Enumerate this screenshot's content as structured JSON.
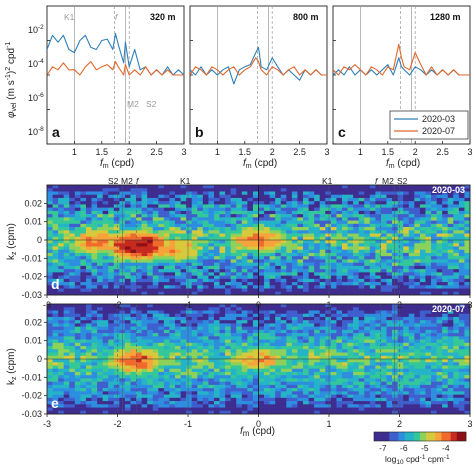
{
  "chart_data": [
    {
      "type": "line",
      "panel": "a",
      "depth_label": "320 m",
      "x_axis": {
        "ticks": [
          "1",
          "1.5",
          "2",
          "2.5",
          "3"
        ]
      },
      "y_axis": {
        "scale": "log",
        "ticks": [
          "10",
          "10",
          "10",
          "10",
          "10"
        ],
        "tick_exponents": [
          "-2",
          "-4",
          "-6",
          "-8",
          ""
        ],
        "range": [
          1e-08,
          1
        ]
      },
      "tidal_lines": [
        {
          "label": "K1",
          "x": 1.0
        },
        {
          "label": "f",
          "x": 1.73
        },
        {
          "label": "M2",
          "x": 1.93
        },
        {
          "label": "S2",
          "x": 2.0
        }
      ],
      "series": [
        {
          "name": "2020-03",
          "color": "#2f7fb8",
          "x": [
            0.5,
            0.6,
            0.7,
            0.8,
            0.9,
            1.0,
            1.1,
            1.2,
            1.3,
            1.4,
            1.5,
            1.6,
            1.7,
            1.75,
            1.8,
            1.9,
            1.93,
            2.0,
            2.1,
            2.2,
            2.3,
            2.4,
            2.5,
            2.6,
            2.7,
            2.8,
            2.9,
            3.0
          ],
          "y": [
            0.003,
            0.02,
            0.008,
            0.02,
            0.003,
            0.002,
            0.01,
            0.02,
            0.004,
            0.003,
            0.01,
            0.012,
            0.003,
            0.025,
            0.006,
            0.0005,
            0.008,
            0.0003,
            0.003,
            0.0002,
            0.0003,
            0.0001,
            0.0002,
            0.0001,
            0.0003,
            0.0001,
            0.0002,
            0.0001
          ]
        },
        {
          "name": "2020-07",
          "color": "#e2662a",
          "x": [
            0.5,
            0.6,
            0.7,
            0.8,
            0.9,
            1.0,
            1.1,
            1.2,
            1.3,
            1.4,
            1.5,
            1.6,
            1.7,
            1.75,
            1.8,
            1.9,
            1.93,
            2.0,
            2.1,
            2.2,
            2.3,
            2.4,
            2.5,
            2.6,
            2.7,
            2.8,
            2.9,
            3.0
          ],
          "y": [
            0.0001,
            0.0003,
            0.0002,
            0.0005,
            0.0002,
            0.0002,
            0.0001,
            0.0003,
            0.0006,
            0.0002,
            0.0003,
            0.0004,
            0.0002,
            0.0006,
            0.0003,
            0.0001,
            0.0004,
            0.0001,
            0.0002,
            0.0001,
            0.0003,
            0.0001,
            0.0002,
            0.0001,
            0.0002,
            0.0001,
            0.0001,
            0.0001
          ]
        }
      ]
    },
    {
      "type": "line",
      "panel": "b",
      "depth_label": "800 m",
      "x_axis": {
        "ticks": [
          "1",
          "1.5",
          "2",
          "2.5",
          "3"
        ]
      },
      "y_axis": {
        "scale": "log",
        "range": [
          1e-08,
          1
        ]
      },
      "series": [
        {
          "name": "2020-03",
          "color": "#2f7fb8",
          "x": [
            0.5,
            0.6,
            0.7,
            0.8,
            0.9,
            1.0,
            1.1,
            1.2,
            1.3,
            1.4,
            1.5,
            1.6,
            1.7,
            1.75,
            1.8,
            1.9,
            2.0,
            2.1,
            2.2,
            2.3,
            2.4,
            2.5,
            2.6,
            2.7,
            2.8,
            2.9,
            3.0
          ],
          "y": [
            0.0002,
            0.0001,
            0.0003,
            0.0001,
            0.0002,
            0.0001,
            0.0002,
            0.0003,
            3e-05,
            0.0002,
            0.0003,
            0.0004,
            0.002,
            0.004,
            0.0003,
            0.0002,
            0.001,
            0.0003,
            0.0001,
            0.0002,
            0.0001,
            5e-05,
            0.0002,
            0.0001,
            0.0002,
            0.0001,
            0.0001
          ]
        },
        {
          "name": "2020-07",
          "color": "#e2662a",
          "x": [
            0.5,
            0.6,
            0.7,
            0.8,
            0.9,
            1.0,
            1.1,
            1.2,
            1.3,
            1.4,
            1.5,
            1.6,
            1.7,
            1.75,
            1.8,
            1.9,
            2.0,
            2.1,
            2.2,
            2.3,
            2.4,
            2.5,
            2.6,
            2.7,
            2.8,
            2.9,
            3.0
          ],
          "y": [
            0.0001,
            0.0003,
            0.0002,
            0.0001,
            0.0003,
            0.0002,
            0.0001,
            0.0002,
            0.0003,
            0.0001,
            0.0002,
            0.0003,
            0.001,
            0.0006,
            0.0002,
            0.0001,
            0.0003,
            0.0002,
            0.0001,
            0.0002,
            0.0003,
            0.0001,
            0.0002,
            0.0001,
            0.0002,
            0.0001,
            0.0001
          ]
        }
      ]
    },
    {
      "type": "line",
      "panel": "c",
      "depth_label": "1280 m",
      "x_axis": {
        "ticks": [
          "1",
          "1.5",
          "2",
          "2.5",
          "3"
        ]
      },
      "y_axis": {
        "scale": "log",
        "range": [
          1e-08,
          1
        ]
      },
      "series": [
        {
          "name": "2020-03",
          "color": "#2f7fb8",
          "x": [
            0.5,
            0.6,
            0.7,
            0.8,
            0.9,
            1.0,
            1.1,
            1.2,
            1.3,
            1.4,
            1.5,
            1.6,
            1.7,
            1.75,
            1.8,
            1.9,
            2.0,
            2.1,
            2.2,
            2.3,
            2.4,
            2.5,
            2.6,
            2.7,
            2.8,
            2.9,
            3.0
          ],
          "y": [
            0.0001,
            0.0002,
            0.0001,
            0.0003,
            0.0001,
            0.0002,
            0.0001,
            0.0002,
            0.0001,
            0.0002,
            0.0004,
            0.0001,
            0.001,
            0.0003,
            0.0002,
            0.0001,
            0.0003,
            0.0002,
            0.0001,
            0.0002,
            0.0001,
            0.0002,
            0.0001,
            0.0002,
            0.0001,
            0.0001,
            0.0001
          ]
        },
        {
          "name": "2020-07",
          "color": "#e2662a",
          "x": [
            0.5,
            0.6,
            0.7,
            0.8,
            0.9,
            1.0,
            1.1,
            1.2,
            1.3,
            1.4,
            1.5,
            1.6,
            1.7,
            1.75,
            1.8,
            1.9,
            2.0,
            2.1,
            2.2,
            2.3,
            2.4,
            2.5,
            2.6,
            2.7,
            2.8,
            2.9,
            3.0
          ],
          "y": [
            0.0002,
            0.0001,
            0.0003,
            0.0002,
            0.0004,
            0.0002,
            0.0001,
            0.0003,
            0.0002,
            0.0001,
            0.0003,
            0.0002,
            0.006,
            0.001,
            0.0003,
            0.0002,
            0.002,
            0.0004,
            0.0001,
            0.0003,
            0.0001,
            0.0002,
            0.0001,
            0.0002,
            0.0001,
            0.0001,
            0.0001
          ]
        }
      ]
    },
    {
      "type": "heatmap",
      "panel": "d",
      "period": "2020-03",
      "x_ticks": [
        "-3",
        "-2",
        "-1",
        "0",
        "1",
        "2",
        "3"
      ],
      "y_ticks": [
        "0.02",
        "0.01",
        "0",
        "-0.01",
        "-0.02",
        "-0.03"
      ],
      "xlim": [
        -3,
        3
      ],
      "ylim": [
        -0.03,
        0.03
      ],
      "tidal_lines": [
        {
          "label": "S2",
          "x": -2.0
        },
        {
          "label": "M2",
          "x": -1.93
        },
        {
          "label": "f",
          "x": -1.73
        },
        {
          "label": "K1",
          "x": -1.0
        },
        {
          "label": "K1",
          "x": 1.0
        },
        {
          "label": "f",
          "x": 1.73
        },
        {
          "label": "M2",
          "x": 1.93
        },
        {
          "label": "S2",
          "x": 2.0
        }
      ],
      "hotspots": [
        {
          "x": -1.7,
          "y": -0.003,
          "level": -4.0
        },
        {
          "x": -2.3,
          "y": -0.001,
          "level": -4.7
        },
        {
          "x": -1.2,
          "y": -0.005,
          "level": -4.8
        },
        {
          "x": 0.0,
          "y": 0.0,
          "level": -4.6
        }
      ]
    },
    {
      "type": "heatmap",
      "panel": "e",
      "period": "2020-07",
      "x_ticks": [
        "-3",
        "-2",
        "-1",
        "0",
        "1",
        "2",
        "3"
      ],
      "y_ticks": [
        "0.02",
        "0.01",
        "0",
        "-0.01",
        "-0.02",
        "-0.03"
      ],
      "xlim": [
        -3,
        3
      ],
      "ylim": [
        -0.03,
        0.03
      ],
      "hotspots": [
        {
          "x": -1.75,
          "y": -0.001,
          "level": -4.5
        },
        {
          "x": 0.0,
          "y": 0.0,
          "level": -4.8
        }
      ]
    }
  ],
  "labels": {
    "panel_a": "a",
    "panel_b": "b",
    "panel_c": "c",
    "panel_d": "d",
    "panel_e": "e",
    "depth_a": "320 m",
    "depth_b": "800 m",
    "depth_c": "1280 m",
    "ylabel_top_sym": "φ",
    "ylabel_top_sub": "vel",
    "ylabel_top_units": " (m s",
    "ylabel_top_exp1": "-1",
    "ylabel_top_mid": ")",
    "ylabel_top_exp2": "2",
    "ylabel_top_end": " cpd",
    "ylabel_top_exp3": "-1",
    "xlabel_top_sym": "f",
    "xlabel_top_sub": "m",
    "xlabel_top_unit": " (cpd)",
    "ylabel_heat_main": "k",
    "ylabel_heat_sub": "z",
    "ylabel_heat_unit": " (cpm)",
    "xlabel_bottom_sym": "f",
    "xlabel_bottom_sub": "m",
    "xlabel_bottom_unit": " (cpd)",
    "legend": [
      "2020-03",
      "2020-07"
    ],
    "period_d": "2020-03",
    "period_e": "2020-07",
    "tide_a": [
      "K1",
      "f",
      "M2",
      "S2"
    ],
    "tide_d_left": [
      "S2",
      "M2",
      "f",
      "K1"
    ],
    "tide_d_right": [
      "K1",
      "f",
      "M2",
      "S2"
    ],
    "colorbar_ticks": [
      "-7",
      "-6",
      "-5",
      "-4"
    ],
    "colorbar_label_pre": "log",
    "colorbar_label_sub": "10",
    "colorbar_label_unit": " cpd",
    "colorbar_label_exp1": "-1",
    "colorbar_label_mid": " cpm",
    "colorbar_label_exp2": "-1",
    "top_x_ticks": [
      "1",
      "1.5",
      "2",
      "2.5",
      "3"
    ],
    "top_y_base": [
      "10",
      "10",
      "10",
      "10",
      "10"
    ],
    "top_y_exp": [
      "-2",
      "-4",
      "-6",
      "-8",
      ""
    ]
  },
  "colors": {
    "series_2020_03": "#2f7fb8",
    "series_2020_07": "#e2662a",
    "grid_gray": "#9a9a9a"
  }
}
